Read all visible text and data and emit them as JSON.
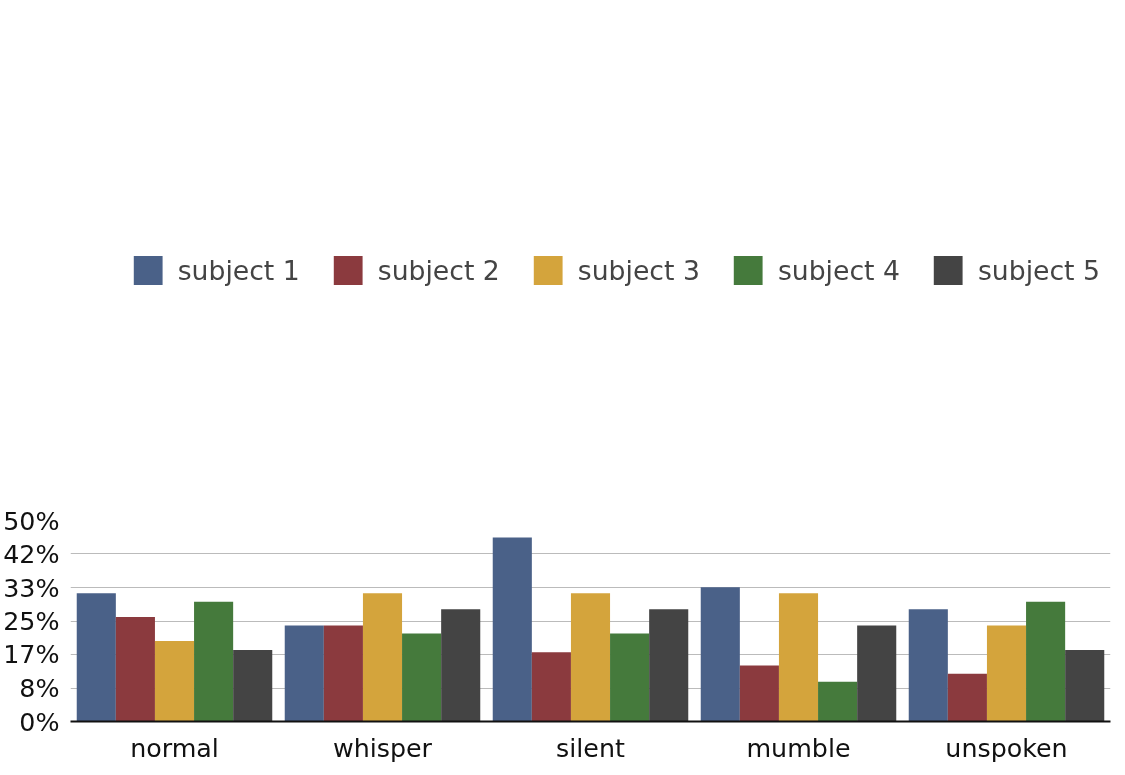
{
  "chart_data": {
    "type": "bar",
    "categories": [
      "normal",
      "whisper",
      "silent",
      "mumble",
      "unspoken"
    ],
    "series": [
      {
        "name": "subject 1",
        "color": "#4a6188",
        "values": [
          31.9,
          23.9,
          45.8,
          33.4,
          27.9
        ]
      },
      {
        "name": "subject 2",
        "color": "#8b3a3e",
        "values": [
          26.0,
          23.9,
          17.2,
          13.9,
          11.9
        ]
      },
      {
        "name": "subject 3",
        "color": "#d4a43c",
        "values": [
          20.0,
          31.9,
          31.9,
          31.9,
          23.9
        ]
      },
      {
        "name": "subject 4",
        "color": "#457a3c",
        "values": [
          29.8,
          21.9,
          21.9,
          9.9,
          29.8
        ]
      },
      {
        "name": "subject 5",
        "color": "#444444",
        "values": [
          17.8,
          27.9,
          27.9,
          23.9,
          17.8
        ]
      }
    ],
    "ylim": [
      0,
      50
    ],
    "yticks": [
      {
        "value": 0,
        "label": "0%"
      },
      {
        "value": 8.333,
        "label": "8%"
      },
      {
        "value": 16.667,
        "label": "17%"
      },
      {
        "value": 25,
        "label": "25%"
      },
      {
        "value": 33.333,
        "label": "33%"
      },
      {
        "value": 41.667,
        "label": "42%"
      },
      {
        "value": 50,
        "label": "50%"
      }
    ],
    "grid": "y",
    "legend": "top"
  }
}
